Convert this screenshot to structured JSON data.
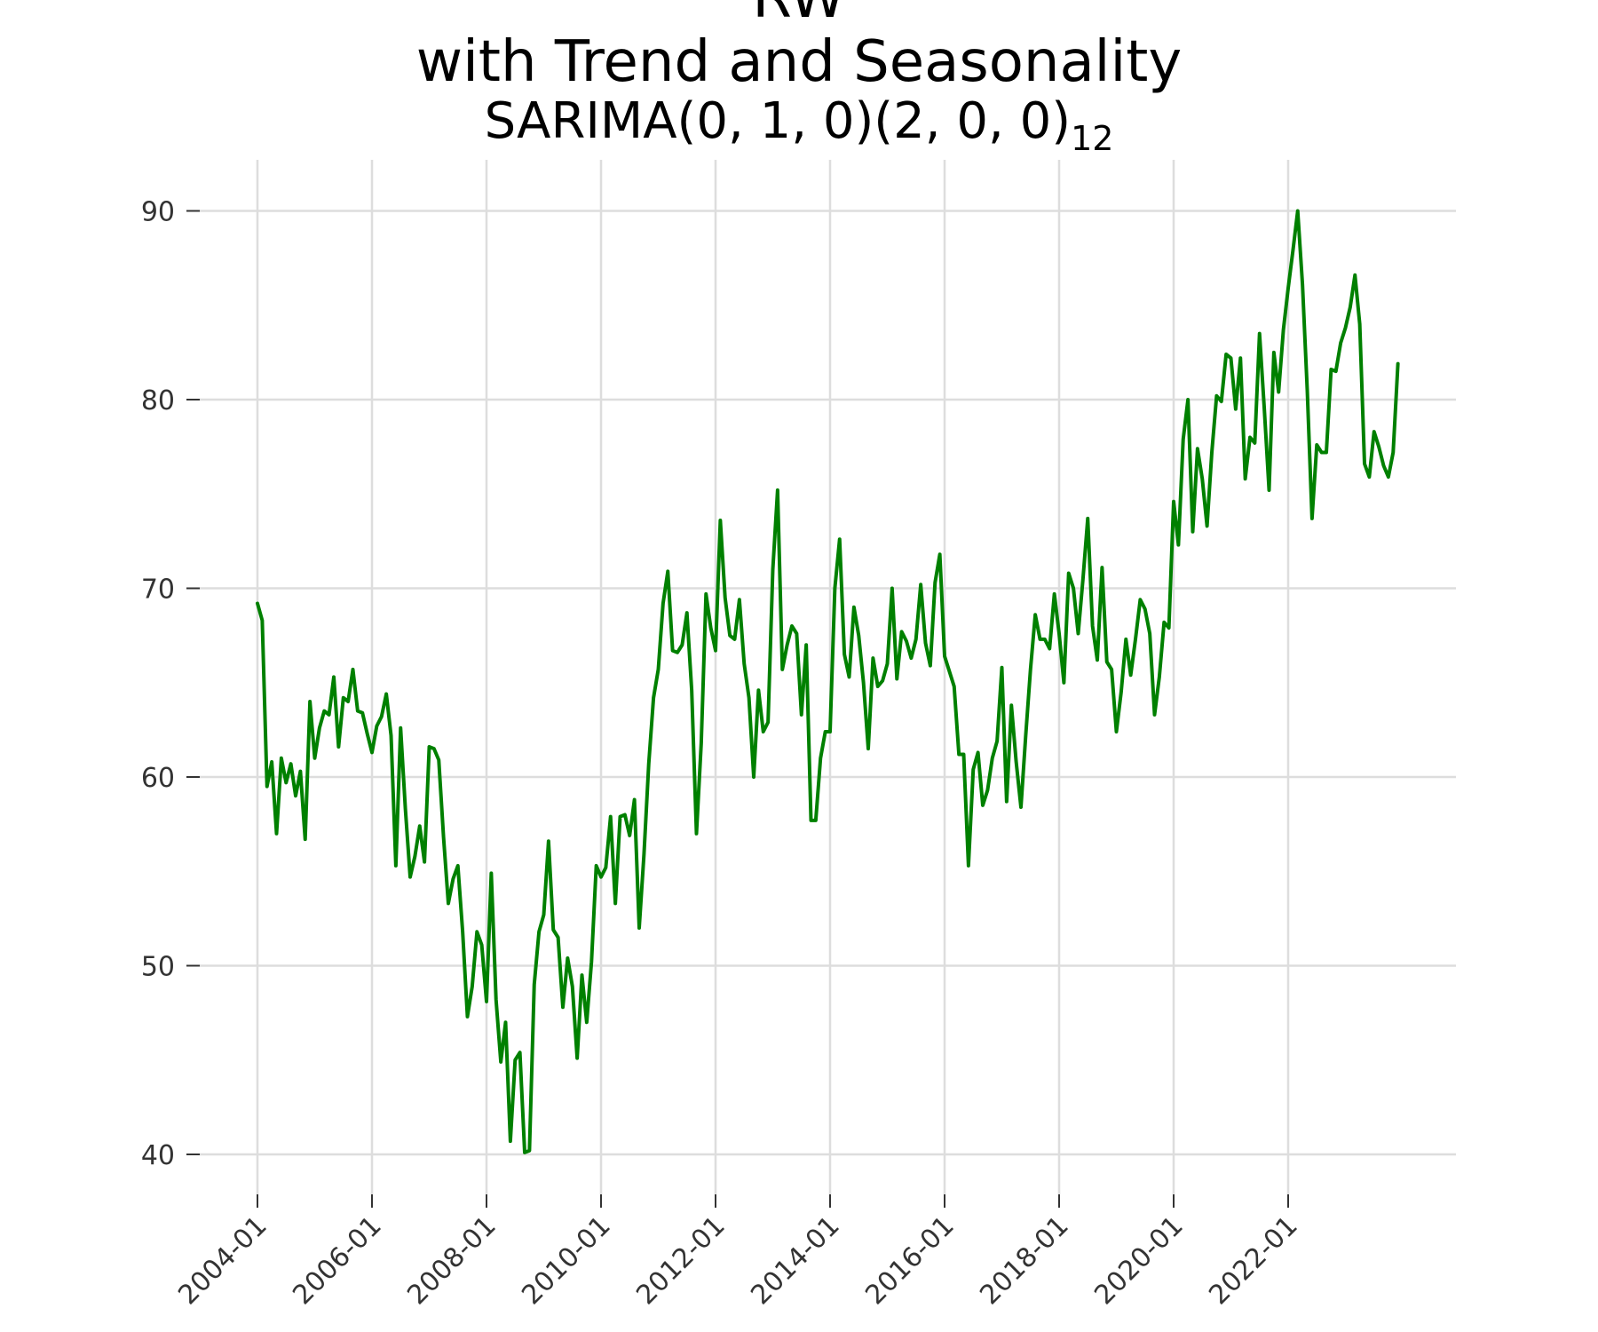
{
  "title": {
    "line1": "RW",
    "line2": "with Trend and Seasonality",
    "sub_main": "SARIMA(0, 1, 0)(2, 0, 0)",
    "sub_script": "12"
  },
  "colors": {
    "series": "#008000",
    "grid": "#dddddd",
    "tick_text": "#333333"
  },
  "chart_data": {
    "type": "line",
    "title": "RW with Trend and Seasonality SARIMA(0, 1, 0)(2, 0, 0)12",
    "xlabel": "",
    "ylabel": "",
    "grid": true,
    "legend": "none",
    "xlim": [
      "2004-01",
      "2023-12"
    ],
    "ylim": [
      37.5,
      92.5
    ],
    "yticks": [
      40,
      50,
      60,
      70,
      80,
      90
    ],
    "xticks": [
      "2004-01",
      "2006-01",
      "2008-01",
      "2010-01",
      "2012-01",
      "2014-01",
      "2016-01",
      "2018-01",
      "2020-01",
      "2022-01"
    ],
    "series": [
      {
        "start": "2004-01",
        "frequency": "monthly",
        "values": [
          69.2,
          68.3,
          59.5,
          60.8,
          57.0,
          61.0,
          59.7,
          60.7,
          59.0,
          60.3,
          56.7,
          64.0,
          61.0,
          62.6,
          63.5,
          63.3,
          65.3,
          61.6,
          64.2,
          64.0,
          65.7,
          63.5,
          63.4,
          62.3,
          61.3,
          62.7,
          63.2,
          64.4,
          62.2,
          55.3,
          62.6,
          58.3,
          54.7,
          55.8,
          57.4,
          55.5,
          61.6,
          61.5,
          60.9,
          56.8,
          53.3,
          54.6,
          55.3,
          51.8,
          47.3,
          48.9,
          51.8,
          51.1,
          48.1,
          54.9,
          48.2,
          44.9,
          47.0,
          40.7,
          45.0,
          45.4,
          40.1,
          40.2,
          49.0,
          51.8,
          52.7,
          56.6,
          51.9,
          51.5,
          47.8,
          50.4,
          48.9,
          45.1,
          49.5,
          47.0,
          50.2,
          55.3,
          54.7,
          55.2,
          57.9,
          53.3,
          57.9,
          58.0,
          56.9,
          58.8,
          52.0,
          55.9,
          60.7,
          64.2,
          65.7,
          69.2,
          70.9,
          66.7,
          66.6,
          67.0,
          68.7,
          64.6,
          57.0,
          61.8,
          69.7,
          67.9,
          66.7,
          73.6,
          69.5,
          67.5,
          67.3,
          69.4,
          66.0,
          64.2,
          60.0,
          64.6,
          62.4,
          62.9,
          71.0,
          75.2,
          65.7,
          67.0,
          68.0,
          67.6,
          63.3,
          67.0,
          57.7,
          57.7,
          61.0,
          62.4,
          62.4,
          70.0,
          72.6,
          66.5,
          65.3,
          69.0,
          67.5,
          65.0,
          61.5,
          66.3,
          64.8,
          65.1,
          66.0,
          70.0,
          65.2,
          67.7,
          67.2,
          66.3,
          67.3,
          70.2,
          67.1,
          65.9,
          70.3,
          71.8,
          66.4,
          65.6,
          64.8,
          61.2,
          61.2,
          55.3,
          60.4,
          61.3,
          58.5,
          59.3,
          61.0,
          61.9,
          65.8,
          58.7,
          63.8,
          60.8,
          58.4,
          62.2,
          65.7,
          68.6,
          67.3,
          67.3,
          66.8,
          69.7,
          67.6,
          65.0,
          70.8,
          70.0,
          67.6,
          70.5,
          73.7,
          68.0,
          66.2,
          71.1,
          66.1,
          65.7,
          62.4,
          64.5,
          67.3,
          65.4,
          67.3,
          69.4,
          68.9,
          67.6,
          63.3,
          65.3,
          68.2,
          67.9,
          74.6,
          72.3,
          77.9,
          80.0,
          73.0,
          77.4,
          75.8,
          73.3,
          77.2,
          80.2,
          79.9,
          82.4,
          82.2,
          79.5,
          82.2,
          75.8,
          78.0,
          77.7,
          83.5,
          79.5,
          75.2,
          82.5,
          80.4,
          83.7,
          85.9,
          87.9,
          90.0,
          86.1,
          80.5,
          73.7,
          77.6,
          77.2,
          77.2,
          81.6,
          81.5,
          83.0,
          83.8,
          84.9,
          86.6,
          84.0,
          76.6,
          75.9,
          78.3,
          77.5,
          76.5,
          75.9,
          77.2,
          81.9
        ]
      }
    ]
  }
}
